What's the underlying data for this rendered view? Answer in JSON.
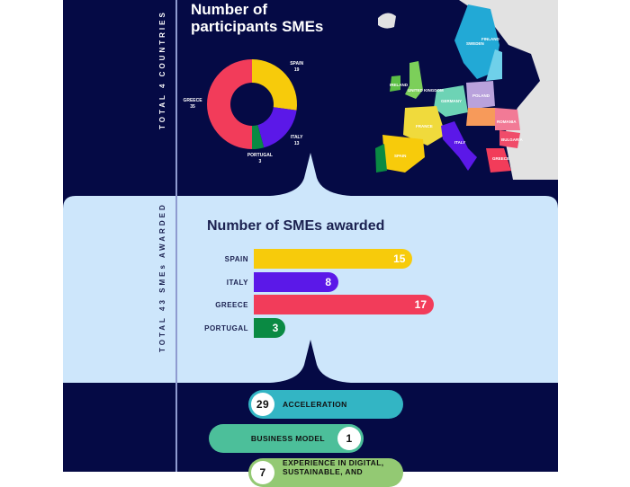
{
  "section1": {
    "side_label": "TOTAL 4 COUNTRIES",
    "title_line1": "Number of",
    "title_line2": "participants SMEs"
  },
  "section2": {
    "side_label": "TOTAL 43 SMEs AWARDED",
    "title": "Number of SMEs awarded"
  },
  "map": {
    "labels": [
      "SWEDEN",
      "FINLAND",
      "IRELAND",
      "UNITED KINGDOM",
      "GERMANY",
      "POLAND",
      "FRANCE",
      "SPAIN",
      "PORTUGAL",
      "ITALY",
      "ROMANIA",
      "BULGARIA",
      "GREECE"
    ]
  },
  "chart_data": [
    {
      "type": "pie",
      "title": "Number of participants SMEs",
      "categories": [
        "SPAIN",
        "ITALY",
        "PORTUGAL",
        "GREECE"
      ],
      "values": [
        19,
        13,
        3,
        35
      ],
      "colors": [
        "#f7cb0b",
        "#5b18e8",
        "#0a8a43",
        "#f23c5a"
      ],
      "donut": true
    },
    {
      "type": "bar",
      "orientation": "horizontal",
      "title": "Number of SMEs awarded",
      "categories": [
        "SPAIN",
        "ITALY",
        "GREECE",
        "PORTUGAL"
      ],
      "values": [
        15,
        8,
        17,
        3
      ],
      "colors": [
        "#f7cb0b",
        "#5b18e8",
        "#f23c5a",
        "#0a8a43"
      ],
      "xlim": [
        0,
        17
      ]
    }
  ],
  "section3": {
    "items": [
      {
        "count": "29",
        "label": "ACCELERATION",
        "color": "#33b5c4"
      },
      {
        "count": "1",
        "label": "BUSINESS MODEL",
        "color": "#4cbf9a"
      },
      {
        "count": "7",
        "label": "EXPERIENCE IN DIGITAL, SUSTAINABLE, AND",
        "color": "#93c973"
      }
    ]
  }
}
